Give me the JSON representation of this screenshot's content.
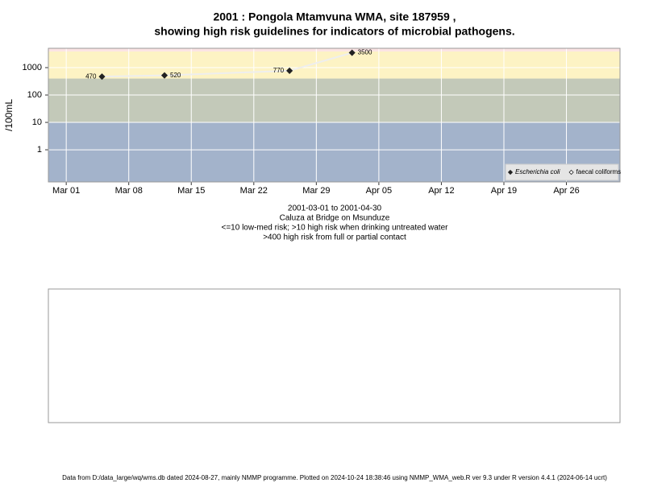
{
  "chart_data": {
    "type": "line",
    "title": "2001 : Pongola Mtamvuna WMA, site 187959 ,",
    "subtitle": "showing high risk guidelines for indicators of microbial pathogens.",
    "ylabel": "/100mL",
    "captions": [
      "2001-03-01 to 2001-04-30",
      "Caluza at Bridge on Msunduze",
      "<=10 low-med risk; >10 high risk when drinking untreated water",
      ">400 high risk from full or partial contact"
    ],
    "x": [
      "2001-03-05",
      "2001-03-12",
      "2001-03-26",
      "2001-04-02"
    ],
    "series": [
      {
        "name": "Escherichia coli",
        "color": "#222222",
        "line_color": "#eeeeee",
        "values": [
          470,
          520,
          770,
          3500
        ]
      },
      {
        "name": "faecal coliforms",
        "color": "#ffffff",
        "line_color": "#eeeeee",
        "values": [
          null,
          null,
          null,
          null
        ]
      }
    ],
    "log_y": true,
    "ylim": [
      0.067,
      5080
    ],
    "yticks": [
      1,
      10,
      100,
      1000
    ],
    "xlim": [
      "2001-02-27",
      "2001-05-02"
    ],
    "xticks": [
      {
        "value": "2001-03-01",
        "label": "Mar 01"
      },
      {
        "value": "2001-03-08",
        "label": "Mar 08"
      },
      {
        "value": "2001-03-15",
        "label": "Mar 15"
      },
      {
        "value": "2001-03-22",
        "label": "Mar 22"
      },
      {
        "value": "2001-03-29",
        "label": "Mar 29"
      },
      {
        "value": "2001-04-05",
        "label": "Apr 05"
      },
      {
        "value": "2001-04-12",
        "label": "Apr 12"
      },
      {
        "value": "2001-04-19",
        "label": "Apr 19"
      },
      {
        "value": "2001-04-26",
        "label": "Apr 26"
      }
    ],
    "bands": [
      {
        "from": 0.067,
        "to": 10,
        "color": "#a3b3cb"
      },
      {
        "from": 10,
        "to": 400,
        "color": "#c3c9b9"
      },
      {
        "from": 400,
        "to": 3900,
        "color": "#fdf3c4"
      },
      {
        "from": 3900,
        "to": 5080,
        "color": "#fbe3e3"
      }
    ],
    "grid": true,
    "legend": "bottom-right",
    "footer": "Data from D:/data_large/wq/wms.db dated 2024-08-27, mainly NMMP programme. Plotted on 2024-10-24 18:38:46 using NMMP_WMA_web.R ver 9.3 under R version 4.4.1 (2024-06-14 ucrt)"
  }
}
